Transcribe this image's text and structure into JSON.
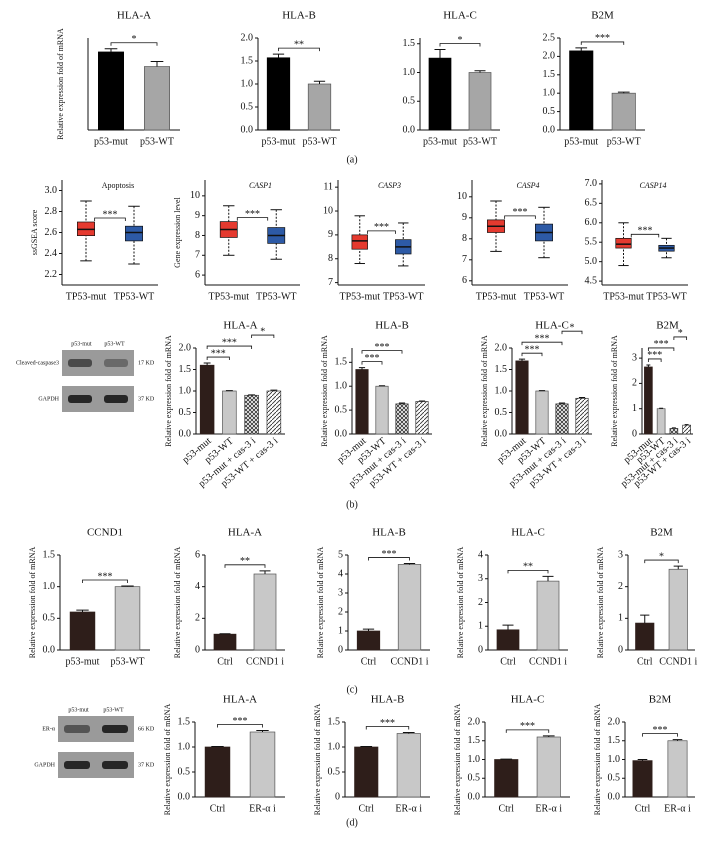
{
  "panel_labels": [
    "(a)",
    "(b)",
    "(c)",
    "(d)"
  ],
  "blots": [
    {
      "lanes": [
        "p53-mut",
        "p53-WT"
      ],
      "rows": [
        {
          "label": "Cleaved-caspase3",
          "size": "17 KD"
        },
        {
          "label": "GAPDH",
          "size": "37 KD"
        }
      ]
    },
    {
      "lanes": [
        "p53-mut",
        "p53-WT"
      ],
      "rows": [
        {
          "label": "ER-α",
          "size": "66 KD"
        },
        {
          "label": "GAPDH",
          "size": "37 KD"
        }
      ]
    }
  ],
  "chart_data": [
    {
      "type": "bar",
      "title": "HLA-A",
      "y_label": "Relative expression fold of mRNA",
      "categories": [
        "p53-mut",
        "p53-WT"
      ],
      "values": [
        1.23,
        1.0
      ],
      "errors": [
        0.05,
        0.08
      ],
      "colors": [
        "#000000",
        "#a6a6a6"
      ],
      "ylim": [
        0,
        1.45
      ],
      "significance": [
        {
          "from": 0,
          "to": 1,
          "label": "*"
        }
      ]
    },
    {
      "type": "bar",
      "title": "HLA-B",
      "categories": [
        "p53-mut",
        "p53-WT"
      ],
      "values": [
        1.57,
        1.0
      ],
      "errors": [
        0.08,
        0.06
      ],
      "colors": [
        "#000000",
        "#a6a6a6"
      ],
      "ylim": [
        0,
        2.0
      ],
      "yticks": [
        {
          "value": 0,
          "label": "0.0"
        },
        0.5,
        {
          "value": 1,
          "label": "1.0"
        },
        1.5,
        {
          "value": 2,
          "label": "2.0"
        }
      ],
      "significance": [
        {
          "from": 0,
          "to": 1,
          "label": "**"
        }
      ]
    },
    {
      "type": "bar",
      "title": "HLA-C",
      "categories": [
        "p53-mut",
        "p53-WT"
      ],
      "values": [
        1.25,
        1.0
      ],
      "errors": [
        0.15,
        0.03
      ],
      "colors": [
        "#000000",
        "#a6a6a6"
      ],
      "ylim": [
        0,
        1.6
      ],
      "yticks": [
        {
          "value": 0,
          "label": "0.0"
        },
        0.5,
        {
          "value": 1,
          "label": "1.0"
        },
        1.5
      ],
      "significance": [
        {
          "from": 0,
          "to": 1,
          "label": "*"
        }
      ]
    },
    {
      "type": "bar",
      "title": "B2M",
      "categories": [
        "p53-mut",
        "p53-WT"
      ],
      "values": [
        2.15,
        1.0
      ],
      "errors": [
        0.08,
        0.03
      ],
      "colors": [
        "#000000",
        "#a6a6a6"
      ],
      "ylim": [
        0,
        2.5
      ],
      "yticks": [
        {
          "value": 0,
          "label": "0.0"
        },
        0.5,
        {
          "value": 1,
          "label": "1.0"
        },
        1.5,
        {
          "value": 2,
          "label": "2.0"
        },
        2.5
      ],
      "significance": [
        {
          "from": 0,
          "to": 1,
          "label": "***"
        }
      ]
    },
    {
      "type": "box",
      "annotation": "Apoptosis",
      "y_label": "ssGSEA score",
      "categories": [
        "TP53-mut",
        "TP53-WT"
      ],
      "median": [
        2.63,
        2.6
      ],
      "q1": [
        2.57,
        2.52
      ],
      "q3": [
        2.7,
        2.66
      ],
      "whisker_low": [
        2.33,
        2.3
      ],
      "whisker_high": [
        2.9,
        2.85
      ],
      "colors": [
        "#e53a2f",
        "#2d5aa6"
      ],
      "ylim": [
        2.1,
        3.1
      ],
      "yticks": [
        2.2,
        2.4,
        2.6,
        2.8,
        {
          "value": 3,
          "label": "3.0"
        }
      ],
      "significance": [
        {
          "from": 0,
          "to": 1,
          "label": "***"
        }
      ]
    },
    {
      "type": "box",
      "annotation": "CASP1",
      "y_label": "Gene expression level",
      "categories": [
        "TP53-mut",
        "TP53-WT"
      ],
      "median": [
        8.3,
        8.0
      ],
      "q1": [
        7.9,
        7.6
      ],
      "q3": [
        8.7,
        8.4
      ],
      "whisker_low": [
        7.0,
        6.8
      ],
      "whisker_high": [
        9.5,
        9.3
      ],
      "colors": [
        "#e53a2f",
        "#2d5aa6"
      ],
      "ylim": [
        5.5,
        10.8
      ],
      "yticks": [
        6,
        7,
        8,
        9,
        10
      ],
      "significance": [
        {
          "from": 0,
          "to": 1,
          "label": "***"
        }
      ]
    },
    {
      "type": "box",
      "annotation": "CASP3",
      "categories": [
        "TP53-mut",
        "TP53-WT"
      ],
      "median": [
        8.75,
        8.5
      ],
      "q1": [
        8.4,
        8.2
      ],
      "q3": [
        9.0,
        8.8
      ],
      "whisker_low": [
        7.8,
        7.7
      ],
      "whisker_high": [
        9.8,
        9.5
      ],
      "colors": [
        "#e53a2f",
        "#2d5aa6"
      ],
      "ylim": [
        6.9,
        11.3
      ],
      "yticks": [
        7,
        8,
        9,
        10,
        11
      ],
      "significance": [
        {
          "from": 0,
          "to": 1,
          "label": "***"
        }
      ]
    },
    {
      "type": "box",
      "annotation": "CASP4",
      "categories": [
        "TP53-mut",
        "TP53-WT"
      ],
      "median": [
        8.6,
        8.3
      ],
      "q1": [
        8.3,
        7.9
      ],
      "q3": [
        8.9,
        8.7
      ],
      "whisker_low": [
        7.4,
        7.1
      ],
      "whisker_high": [
        9.8,
        9.5
      ],
      "colors": [
        "#e53a2f",
        "#2d5aa6"
      ],
      "ylim": [
        5.8,
        10.8
      ],
      "yticks": [
        6,
        7,
        8,
        9,
        10
      ],
      "significance": [
        {
          "from": 0,
          "to": 1,
          "label": "***"
        }
      ]
    },
    {
      "type": "box",
      "annotation": "CASP14",
      "categories": [
        "TP53-mut",
        "TP53-WT"
      ],
      "median": [
        5.45,
        5.35
      ],
      "q1": [
        5.35,
        5.27
      ],
      "q3": [
        5.6,
        5.42
      ],
      "whisker_low": [
        4.9,
        5.1
      ],
      "whisker_high": [
        6.0,
        5.6
      ],
      "colors": [
        "#e53a2f",
        "#2d5aa6"
      ],
      "ylim": [
        4.4,
        7.1
      ],
      "yticks": [
        4.5,
        {
          "value": 5,
          "label": "5.0"
        },
        5.5,
        {
          "value": 6,
          "label": "6.0"
        },
        6.5,
        {
          "value": 7,
          "label": "7.0"
        }
      ],
      "significance": [
        {
          "from": 0,
          "to": 1,
          "label": "***"
        }
      ]
    },
    {
      "type": "bar",
      "title": "HLA-A",
      "y_label": "Relative expression fold of mRNA",
      "categories": [
        "p53-mut",
        "p53-WT",
        "p53-mut + cas-3 i",
        "p53-WT + cas-3 i"
      ],
      "values": [
        1.6,
        1.0,
        0.9,
        1.0
      ],
      "errors": [
        0.05,
        0.01,
        0.01,
        0.02
      ],
      "colors": [
        "#2e1e1a",
        "#c8c8c8",
        "#333333",
        "#333333"
      ],
      "patterns": [
        "solid",
        "solid",
        "crosshatch",
        "hatch"
      ],
      "ylim": [
        0,
        2.0
      ],
      "yticks": [
        {
          "value": 0,
          "label": "0.0"
        },
        0.5,
        {
          "value": 1,
          "label": "1.0"
        },
        1.5,
        {
          "value": 2,
          "label": "2.0"
        }
      ],
      "significance": [
        {
          "from": 0,
          "to": 1,
          "label": "***"
        },
        {
          "from": 0,
          "to": 2,
          "label": "***"
        },
        {
          "from": 2,
          "to": 3,
          "label": "*"
        }
      ]
    },
    {
      "type": "bar",
      "title": "HLA-B",
      "y_label": "Relative expression fold of mRNA",
      "categories": [
        "p53-mut",
        "p53-WT",
        "p53-mut + cas-3 i",
        "p53-WT + cas-3 i"
      ],
      "values": [
        1.35,
        1.0,
        0.63,
        0.68
      ],
      "errors": [
        0.04,
        0.01,
        0.02,
        0.01
      ],
      "colors": [
        "#2e1e1a",
        "#c8c8c8",
        "#333333",
        "#333333"
      ],
      "patterns": [
        "solid",
        "solid",
        "crosshatch",
        "hatch"
      ],
      "ylim": [
        0,
        1.8
      ],
      "yticks": [
        {
          "value": 0,
          "label": "0.0"
        },
        0.5,
        {
          "value": 1,
          "label": "1.0"
        },
        1.5
      ],
      "significance": [
        {
          "from": 0,
          "to": 1,
          "label": "***"
        },
        {
          "from": 0,
          "to": 2,
          "label": "***"
        }
      ]
    },
    {
      "type": "bar",
      "title": "HLA-C",
      "y_label": "Relative expression fold of mRNA",
      "categories": [
        "p53-mut",
        "p53-WT",
        "p53-mut + cas-3 i",
        "p53-WT + cas-3 i"
      ],
      "values": [
        1.7,
        1.0,
        0.7,
        0.83
      ],
      "errors": [
        0.04,
        0.01,
        0.02,
        0.02
      ],
      "colors": [
        "#2e1e1a",
        "#c8c8c8",
        "#333333",
        "#333333"
      ],
      "patterns": [
        "solid",
        "solid",
        "crosshatch",
        "hatch"
      ],
      "ylim": [
        0,
        2.0
      ],
      "yticks": [
        {
          "value": 0,
          "label": "0.0"
        },
        0.5,
        {
          "value": 1,
          "label": "1.0"
        },
        1.5,
        {
          "value": 2,
          "label": "2.0"
        }
      ],
      "significance": [
        {
          "from": 0,
          "to": 1,
          "label": "***"
        },
        {
          "from": 0,
          "to": 2,
          "label": "***"
        },
        {
          "from": 2,
          "to": 3,
          "label": "*"
        }
      ]
    },
    {
      "type": "bar",
      "title": "B2M",
      "y_label": "Relative expression fold of mRNA",
      "categories": [
        "p53-mut",
        "p53-WT",
        "p53-mut + cas-3 i",
        "p53-WT + cas-3 i"
      ],
      "values": [
        2.65,
        1.0,
        0.22,
        0.35
      ],
      "errors": [
        0.08,
        0.02,
        0.02,
        0.02
      ],
      "colors": [
        "#2e1e1a",
        "#c8c8c8",
        "#333333",
        "#333333"
      ],
      "patterns": [
        "solid",
        "solid",
        "crosshatch",
        "hatch"
      ],
      "ylim": [
        0,
        3.4
      ],
      "yticks": [
        0,
        1,
        2,
        3
      ],
      "significance": [
        {
          "from": 0,
          "to": 1,
          "label": "***"
        },
        {
          "from": 0,
          "to": 2,
          "label": "***"
        },
        {
          "from": 2,
          "to": 3,
          "label": "*"
        }
      ]
    },
    {
      "type": "bar",
      "title": "CCND1",
      "y_label": "Relative expression fold of mRNA",
      "categories": [
        "p53-mut",
        "p53-WT"
      ],
      "values": [
        0.6,
        1.0
      ],
      "errors": [
        0.03,
        0.01
      ],
      "colors": [
        "#2e1e1a",
        "#c8c8c8"
      ],
      "ylim": [
        0,
        1.5
      ],
      "yticks": [
        {
          "value": 0,
          "label": "0.0"
        },
        0.5,
        {
          "value": 1,
          "label": "1.0"
        },
        1.5
      ],
      "significance": [
        {
          "from": 0,
          "to": 1,
          "label": "***"
        }
      ]
    },
    {
      "type": "bar",
      "title": "HLA-A",
      "y_label": "Relative expression fold of mRNA",
      "categories": [
        "Ctrl",
        "CCND1 i"
      ],
      "values": [
        1.0,
        4.8
      ],
      "errors": [
        0.03,
        0.2
      ],
      "colors": [
        "#2e1e1a",
        "#c8c8c8"
      ],
      "ylim": [
        0,
        6
      ],
      "yticks": [
        0,
        2,
        4,
        6
      ],
      "significance": [
        {
          "from": 0,
          "to": 1,
          "label": "**"
        }
      ]
    },
    {
      "type": "bar",
      "title": "HLA-B",
      "y_label": "Relative expression fold of mRNA",
      "categories": [
        "Ctrl",
        "CCND1 i"
      ],
      "values": [
        1.0,
        4.5
      ],
      "errors": [
        0.1,
        0.05
      ],
      "colors": [
        "#2e1e1a",
        "#c8c8c8"
      ],
      "ylim": [
        0,
        5
      ],
      "yticks": [
        0,
        1,
        2,
        3,
        4,
        5
      ],
      "significance": [
        {
          "from": 0,
          "to": 1,
          "label": "***"
        }
      ]
    },
    {
      "type": "bar",
      "title": "HLA-C",
      "y_label": "Relative expression fold of mRNA",
      "categories": [
        "Ctrl",
        "CCND1 i"
      ],
      "values": [
        0.85,
        2.9
      ],
      "errors": [
        0.2,
        0.2
      ],
      "colors": [
        "#2e1e1a",
        "#c8c8c8"
      ],
      "ylim": [
        0,
        4
      ],
      "yticks": [
        0,
        1,
        2,
        3,
        4
      ],
      "significance": [
        {
          "from": 0,
          "to": 1,
          "label": "**"
        }
      ]
    },
    {
      "type": "bar",
      "title": "B2M",
      "y_label": "Relative expression fold of mRNA",
      "categories": [
        "Ctrl",
        "CCND1 i"
      ],
      "values": [
        0.85,
        2.55
      ],
      "errors": [
        0.25,
        0.1
      ],
      "colors": [
        "#2e1e1a",
        "#c8c8c8"
      ],
      "ylim": [
        0,
        3
      ],
      "yticks": [
        0,
        1,
        2,
        3
      ],
      "significance": [
        {
          "from": 0,
          "to": 1,
          "label": "*"
        }
      ]
    },
    {
      "type": "bar",
      "title": "HLA-A",
      "y_label": "Relative expression fold of mRNA",
      "categories": [
        "Ctrl",
        "ER-α i"
      ],
      "values": [
        1.0,
        1.3
      ],
      "errors": [
        0.01,
        0.03
      ],
      "colors": [
        "#2e1e1a",
        "#c8c8c8"
      ],
      "ylim": [
        0,
        1.5
      ],
      "yticks": [
        {
          "value": 0,
          "label": "0.0"
        },
        0.5,
        {
          "value": 1,
          "label": "1.0"
        },
        1.5
      ],
      "significance": [
        {
          "from": 0,
          "to": 1,
          "label": "***"
        }
      ]
    },
    {
      "type": "bar",
      "title": "HLA-B",
      "y_label": "Relative expression fold of mRNA",
      "categories": [
        "Ctrl",
        "ER-α i"
      ],
      "values": [
        1.0,
        1.27
      ],
      "errors": [
        0.01,
        0.02
      ],
      "colors": [
        "#2e1e1a",
        "#c8c8c8"
      ],
      "ylim": [
        0,
        1.5
      ],
      "yticks": [
        0,
        0.5,
        {
          "value": 1,
          "label": "1.0"
        },
        1.5
      ],
      "significance": [
        {
          "from": 0,
          "to": 1,
          "label": "***"
        }
      ]
    },
    {
      "type": "bar",
      "title": "HLA-C",
      "y_label": "Relative expression fold of mRNA",
      "categories": [
        "Ctrl",
        "ER-α i"
      ],
      "values": [
        1.0,
        1.6
      ],
      "errors": [
        0.01,
        0.03
      ],
      "colors": [
        "#2e1e1a",
        "#c8c8c8"
      ],
      "ylim": [
        0,
        2.0
      ],
      "yticks": [
        {
          "value": 0,
          "label": "0.0"
        },
        0.5,
        {
          "value": 1,
          "label": "1.0"
        },
        1.5,
        {
          "value": 2,
          "label": "2.0"
        }
      ],
      "significance": [
        {
          "from": 0,
          "to": 1,
          "label": "***"
        }
      ]
    },
    {
      "type": "bar",
      "title": "B2M",
      "y_label": "Relative expression fold of mRNA",
      "categories": [
        "Ctrl",
        "ER-α i"
      ],
      "values": [
        0.97,
        1.5
      ],
      "errors": [
        0.03,
        0.03
      ],
      "colors": [
        "#2e1e1a",
        "#c8c8c8"
      ],
      "ylim": [
        0,
        2.0
      ],
      "yticks": [
        {
          "value": 0,
          "label": "0.0"
        },
        0.5,
        {
          "value": 1,
          "label": "1.0"
        },
        1.5,
        {
          "value": 2,
          "label": "2.0"
        }
      ],
      "significance": [
        {
          "from": 0,
          "to": 1,
          "label": "***"
        }
      ]
    }
  ]
}
